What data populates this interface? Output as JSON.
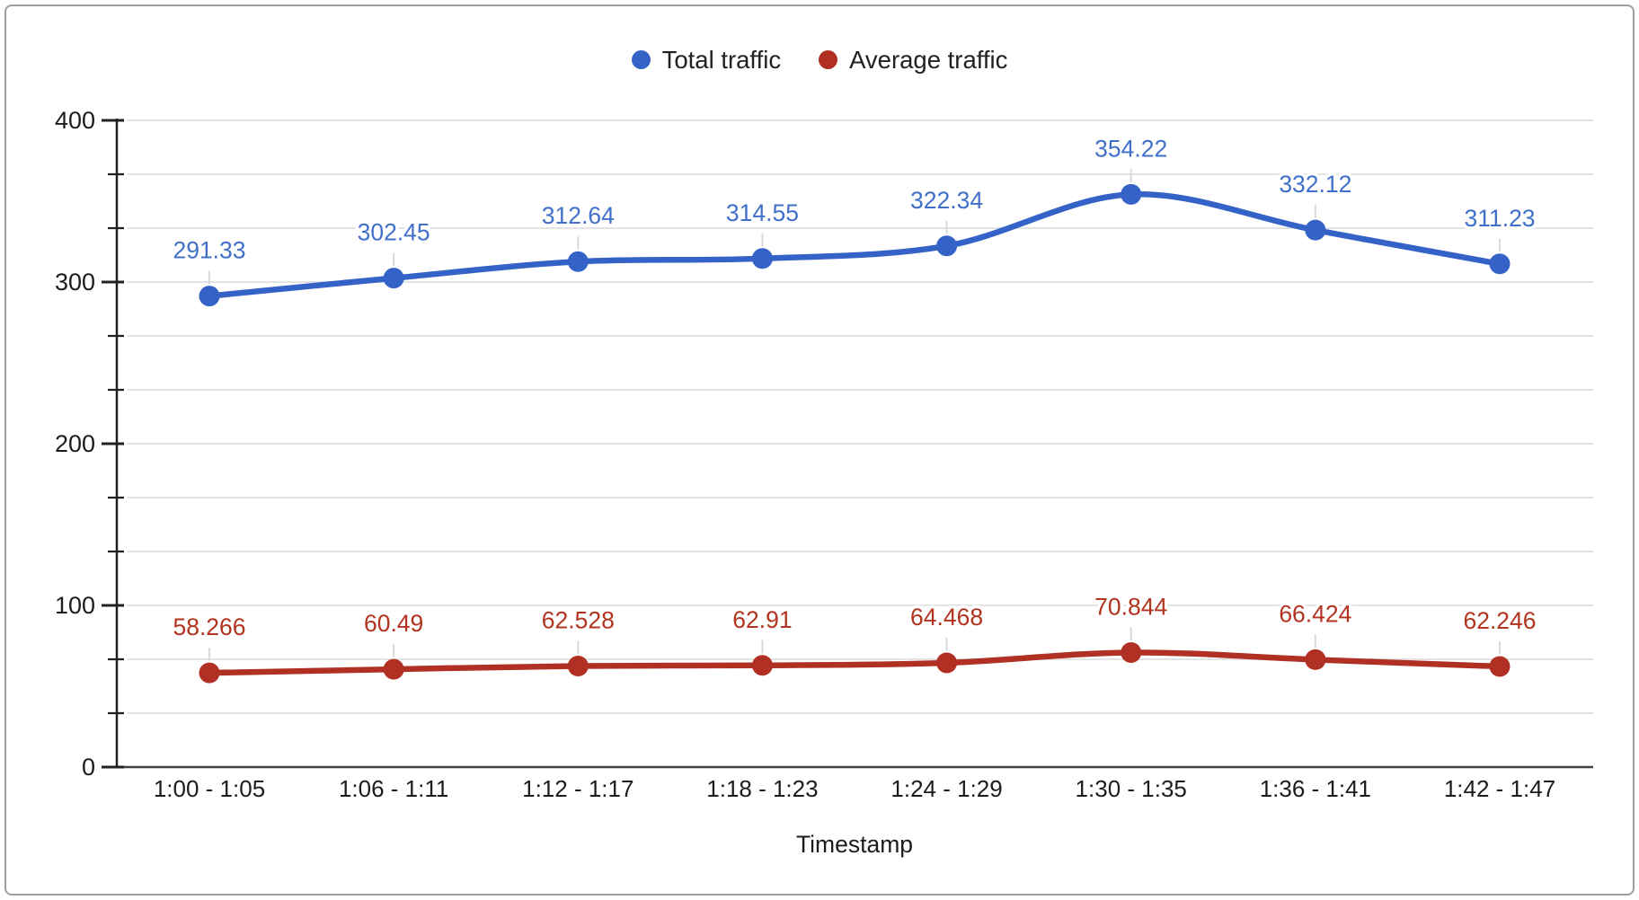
{
  "window": {
    "background": "#ffffff",
    "frame_border_color": "#9e9e9e"
  },
  "chart_data": {
    "type": "line",
    "smooth": true,
    "title": "",
    "xlabel": "Timestamp",
    "ylabel": "",
    "ylim": [
      0,
      400
    ],
    "y_major_ticks": [
      0,
      100,
      200,
      300,
      400
    ],
    "y_minor_divisions_per_major": 3,
    "grid": true,
    "legend_position": "top",
    "categories": [
      "1:00 - 1:05",
      "1:06 - 1:11",
      "1:12 - 1:17",
      "1:18 - 1:23",
      "1:24 - 1:29",
      "1:30 - 1:35",
      "1:36 - 1:41",
      "1:42 - 1:47"
    ],
    "series": [
      {
        "name": "Total traffic",
        "color": "#3462c7",
        "label_color": "#4070ca",
        "values": [
          291.33,
          302.45,
          312.64,
          314.55,
          322.34,
          354.22,
          332.12,
          311.23
        ],
        "point_labels": [
          "291.33",
          "302.45",
          "312.64",
          "314.55",
          "322.34",
          "354.22",
          "332.12",
          "311.23"
        ]
      },
      {
        "name": "Average traffic",
        "color": "#b03023",
        "label_color": "#b2341f",
        "values": [
          58.266,
          60.49,
          62.528,
          62.91,
          64.468,
          70.844,
          66.424,
          62.246
        ],
        "point_labels": [
          "58.266",
          "60.49",
          "62.528",
          "62.91",
          "64.468",
          "70.844",
          "66.424",
          "62.246"
        ]
      }
    ],
    "colors": {
      "gridline": "#e3e3e3",
      "baseline": "#424242",
      "axis_line": "#212121",
      "tick_label": "#1c1c1c",
      "leader_line": "#d9d9d9"
    }
  }
}
